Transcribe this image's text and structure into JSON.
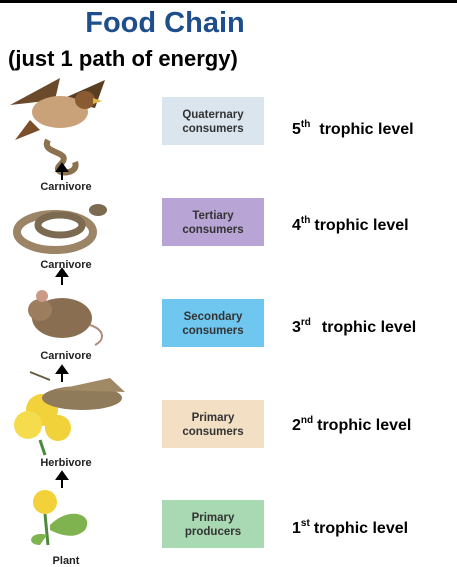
{
  "title": "Food Chain",
  "subtitle": "(just 1 path of energy)",
  "levels": [
    {
      "organism": "Carnivore",
      "box_lines": [
        "Quaternary",
        "consumers"
      ],
      "ordinal": "5",
      "suffix": "th",
      "label": "trophic level"
    },
    {
      "organism": "Carnivore",
      "box_lines": [
        "Tertiary",
        "consumers"
      ],
      "ordinal": "4",
      "suffix": "th",
      "label": "trophic level"
    },
    {
      "organism": "Carnivore",
      "box_lines": [
        "Secondary",
        "consumers"
      ],
      "ordinal": "3",
      "suffix": "rd",
      "label": "trophic level"
    },
    {
      "organism": "Herbivore",
      "box_lines": [
        "Primary",
        "consumers"
      ],
      "ordinal": "2",
      "suffix": "nd",
      "label": "trophic level"
    },
    {
      "organism": "Plant",
      "box_lines": [
        "Primary",
        "producers"
      ],
      "ordinal": "1",
      "suffix": "st",
      "label": "trophic level"
    }
  ]
}
